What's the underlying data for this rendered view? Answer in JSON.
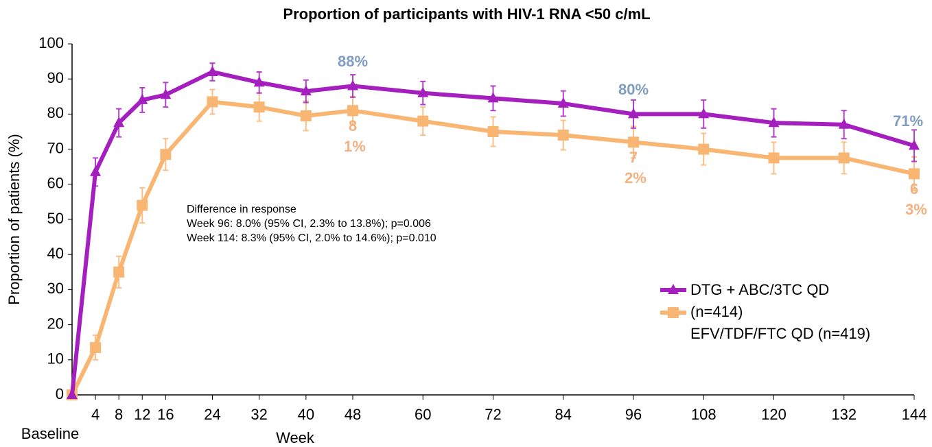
{
  "chart_data": {
    "type": "line",
    "title": "Proportion of participants with HIV-1 RNA <50 c/mL",
    "xlabel": "Week",
    "ylabel": "Proportion of patients (%)",
    "x": [
      0,
      4,
      8,
      12,
      16,
      24,
      32,
      40,
      48,
      60,
      72,
      84,
      96,
      108,
      120,
      132,
      144
    ],
    "series": [
      {
        "name": "DTG + ABC/3TC QD (n=414)",
        "color": "#a51fbf",
        "marker": "triangle",
        "values": [
          0,
          63.5,
          77.5,
          84,
          85.5,
          92,
          89,
          86.5,
          88,
          86,
          84.5,
          83,
          80,
          80,
          77.5,
          77,
          71
        ],
        "errors": [
          0,
          4,
          4,
          3.5,
          3.5,
          2.5,
          3,
          3.2,
          3.2,
          3.3,
          3.5,
          3.6,
          4,
          4,
          4,
          4,
          4.5
        ]
      },
      {
        "name": "EFV/TDF/FTC QD (n=419)",
        "color": "#f9b572",
        "marker": "square",
        "values": [
          0,
          13.5,
          35,
          54,
          68.5,
          83.5,
          82,
          79.5,
          81,
          78,
          75,
          74,
          72,
          70,
          67.5,
          67.5,
          63
        ],
        "errors": [
          0,
          3.5,
          4.5,
          5,
          4.5,
          3.5,
          4,
          4.2,
          4,
          4,
          4.2,
          4.2,
          4.5,
          4.5,
          4.5,
          4.5,
          4.8
        ]
      }
    ],
    "annotations": [
      {
        "text": "88%",
        "series": 0,
        "x": 48
      },
      {
        "text": "80%",
        "series": 0,
        "x": 96
      },
      {
        "text": "71%",
        "series": 0,
        "x": 144
      },
      {
        "text": "81%",
        "series": 1,
        "x": 48
      },
      {
        "text": "72%",
        "series": 1,
        "x": 96
      },
      {
        "text": "63%",
        "series": 1,
        "x": 144
      }
    ],
    "note": [
      "Difference in response",
      "Week 96: 8.0% (95% CI, 2.3% to 13.8%); p=0.006",
      "Week 114: 8.3% (95% CI, 2.0% to 14.6%); p=0.010"
    ],
    "xlim": [
      0,
      144
    ],
    "xticks": [
      {
        "value": 0,
        "label": "Baseline"
      },
      4,
      8,
      12,
      16,
      24,
      32,
      40,
      48,
      60,
      72,
      84,
      96,
      108,
      120,
      132,
      144
    ],
    "ylim": [
      0,
      100
    ],
    "yticks": [
      0,
      10,
      20,
      30,
      40,
      50,
      60,
      70,
      80,
      90,
      100
    ],
    "grid": false,
    "legend": "lower right"
  }
}
